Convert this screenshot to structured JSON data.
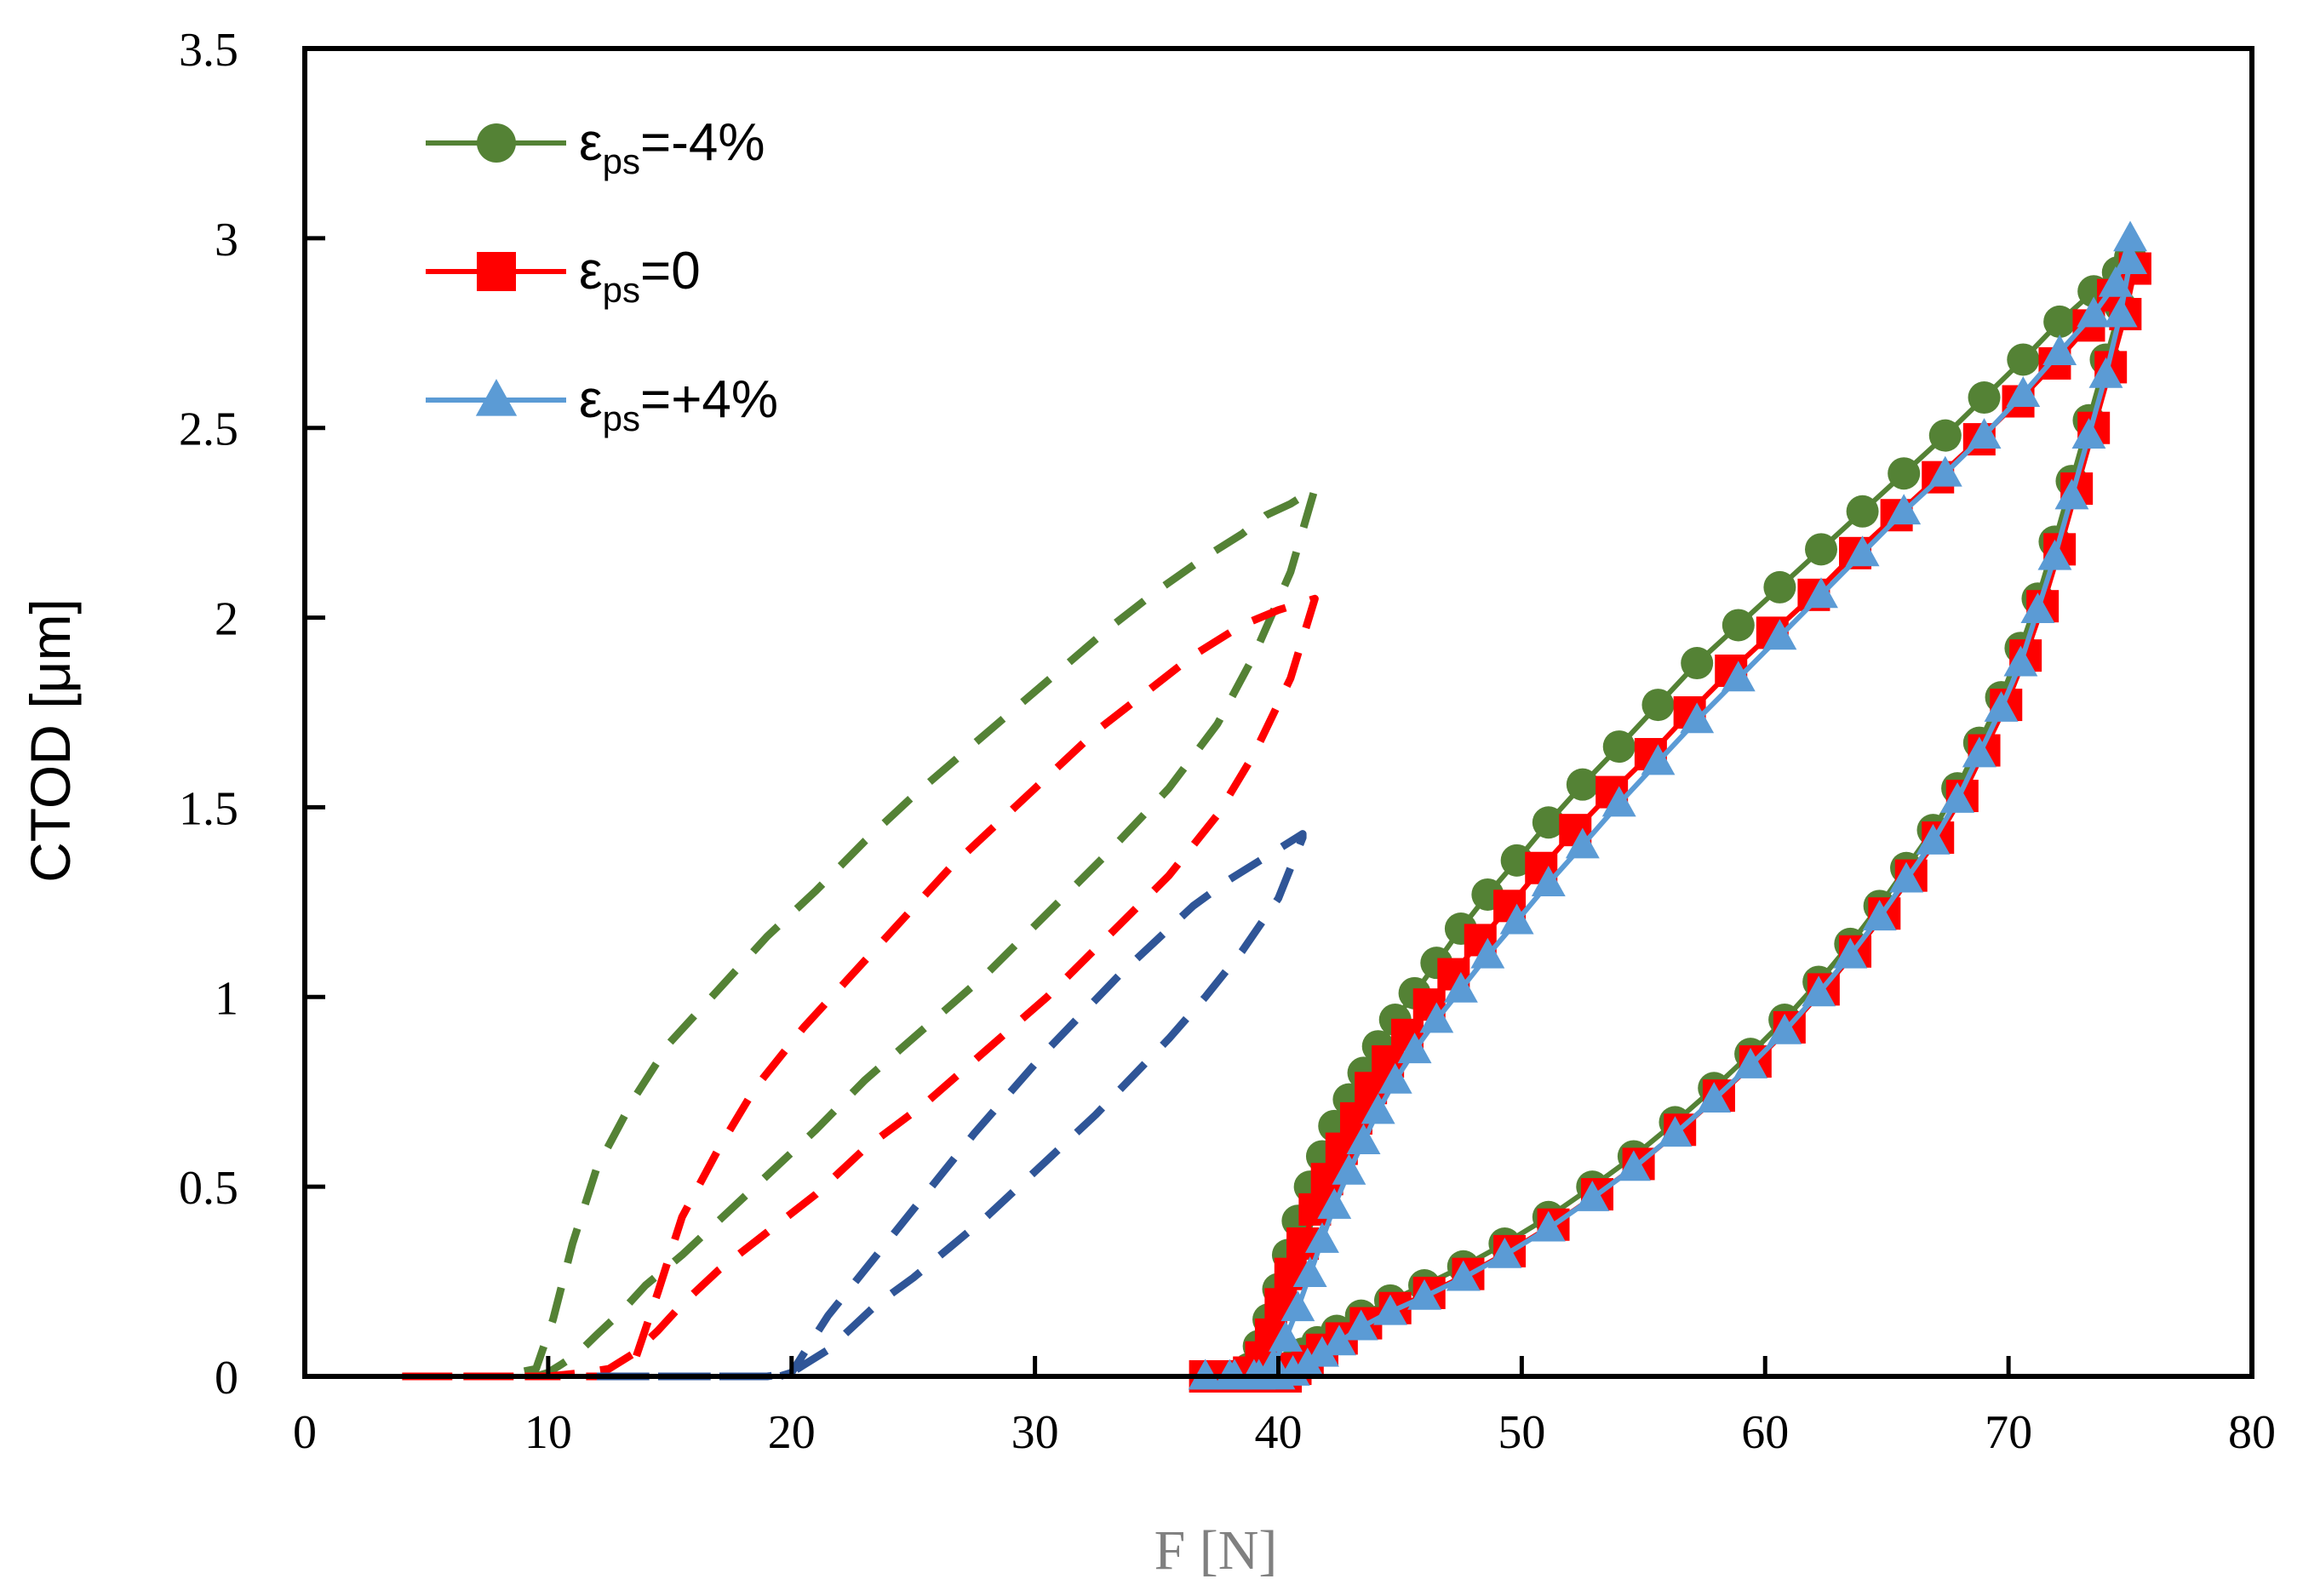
{
  "chart_data": {
    "type": "scatter",
    "title": "",
    "xlabel": "F [N]",
    "ylabel": "CTOD [μm]",
    "xlim": [
      0,
      80
    ],
    "ylim": [
      0,
      3.5
    ],
    "x_ticks": [
      "0",
      "10",
      "20",
      "30",
      "40",
      "50",
      "60",
      "70",
      "80"
    ],
    "y_ticks": [
      "0",
      "0.5",
      "1",
      "1.5",
      "2",
      "2.5",
      "3",
      "3.5"
    ],
    "grid": false,
    "legend_position": "top-left",
    "legend": [
      {
        "prefix": "ε",
        "subscript": "ps",
        "suffix": "=-4%",
        "color": "#548235",
        "marker": "circle"
      },
      {
        "prefix": "ε",
        "subscript": "ps",
        "suffix": "=0",
        "color": "#FF0000",
        "marker": "square"
      },
      {
        "prefix": "ε",
        "subscript": "ps",
        "suffix": "=+4%",
        "color": "#5B9BD5",
        "marker": "triangle"
      }
    ],
    "series": [
      {
        "name": "εps=-4%",
        "style": "marker-line",
        "color": "#548235",
        "marker": "circle",
        "x": [
          37.0,
          38.0,
          38.8,
          39.2,
          39.6,
          40.0,
          40.4,
          40.8,
          41.3,
          41.8,
          42.3,
          42.9,
          43.5,
          44.1,
          44.8,
          45.6,
          46.5,
          47.5,
          48.6,
          49.8,
          51.1,
          52.5,
          54.0,
          55.6,
          57.2,
          58.9,
          60.6,
          62.3,
          64.0,
          65.7,
          67.4,
          69.0,
          70.6,
          72.1,
          73.5,
          74.5,
          75.0,
          75.0,
          74.6,
          74.0,
          73.3,
          72.6,
          71.9,
          71.2,
          70.5,
          69.7,
          68.8,
          67.9,
          66.9,
          65.8,
          64.7,
          63.5,
          62.2,
          60.8,
          59.4,
          57.9,
          56.3,
          54.6,
          52.9,
          51.1,
          49.3,
          47.6,
          46.0,
          44.6,
          43.4,
          42.4,
          41.6,
          41.0,
          40.6,
          40.2,
          39.8,
          39.3,
          38.6,
          37.8,
          37.0
        ],
        "y": [
          0,
          0,
          0.02,
          0.08,
          0.15,
          0.23,
          0.32,
          0.41,
          0.5,
          0.58,
          0.66,
          0.73,
          0.8,
          0.87,
          0.94,
          1.01,
          1.09,
          1.18,
          1.27,
          1.36,
          1.46,
          1.56,
          1.66,
          1.77,
          1.88,
          1.98,
          2.08,
          2.18,
          2.28,
          2.38,
          2.48,
          2.58,
          2.68,
          2.78,
          2.86,
          2.91,
          2.95,
          2.93,
          2.82,
          2.68,
          2.52,
          2.36,
          2.2,
          2.05,
          1.92,
          1.79,
          1.67,
          1.55,
          1.44,
          1.34,
          1.24,
          1.14,
          1.04,
          0.94,
          0.85,
          0.76,
          0.67,
          0.58,
          0.5,
          0.42,
          0.35,
          0.29,
          0.24,
          0.2,
          0.16,
          0.12,
          0.09,
          0.06,
          0.03,
          0.01,
          0,
          0,
          0,
          0,
          0
        ]
      },
      {
        "name": "εps=0",
        "style": "marker-line",
        "color": "#FF0000",
        "marker": "square",
        "x": [
          37.0,
          38.0,
          38.8,
          39.3,
          39.7,
          40.1,
          40.5,
          41.0,
          41.5,
          42.0,
          42.6,
          43.2,
          43.8,
          44.5,
          45.3,
          46.2,
          47.2,
          48.3,
          49.5,
          50.8,
          52.2,
          53.7,
          55.3,
          56.9,
          58.6,
          60.3,
          62.0,
          63.7,
          65.4,
          67.1,
          68.8,
          70.4,
          71.9,
          73.3,
          74.3,
          75.2,
          75.2,
          74.8,
          74.2,
          73.5,
          72.8,
          72.1,
          71.4,
          70.7,
          69.9,
          69.0,
          68.1,
          67.1,
          66.0,
          64.9,
          63.7,
          62.4,
          61.0,
          59.6,
          58.1,
          56.5,
          54.8,
          53.1,
          51.3,
          49.5,
          47.8,
          46.2,
          44.8,
          43.6,
          42.6,
          41.8,
          41.2,
          40.7,
          40.3,
          39.8,
          39.2,
          38.5,
          37.8,
          37.0
        ],
        "y": [
          0,
          0,
          0.01,
          0.05,
          0.11,
          0.19,
          0.27,
          0.35,
          0.44,
          0.52,
          0.6,
          0.68,
          0.76,
          0.83,
          0.9,
          0.98,
          1.06,
          1.15,
          1.24,
          1.34,
          1.44,
          1.54,
          1.64,
          1.75,
          1.86,
          1.96,
          2.06,
          2.17,
          2.27,
          2.37,
          2.47,
          2.57,
          2.67,
          2.77,
          2.85,
          2.92,
          2.92,
          2.8,
          2.66,
          2.5,
          2.34,
          2.18,
          2.03,
          1.9,
          1.77,
          1.65,
          1.53,
          1.42,
          1.32,
          1.22,
          1.12,
          1.02,
          0.92,
          0.83,
          0.74,
          0.65,
          0.56,
          0.48,
          0.4,
          0.33,
          0.27,
          0.22,
          0.18,
          0.14,
          0.1,
          0.07,
          0.04,
          0.02,
          0,
          0,
          0,
          0,
          0,
          0
        ]
      },
      {
        "name": "εps=+4%",
        "style": "marker-line",
        "color": "#5B9BD5",
        "marker": "triangle",
        "x": [
          37.0,
          38.0,
          39.0,
          39.8,
          40.3,
          40.8,
          41.3,
          41.8,
          42.3,
          42.9,
          43.5,
          44.1,
          44.8,
          45.6,
          46.5,
          47.5,
          48.6,
          49.8,
          51.1,
          52.5,
          54.0,
          55.6,
          57.2,
          58.9,
          60.6,
          62.3,
          64.0,
          65.7,
          67.4,
          69.0,
          70.6,
          72.1,
          73.5,
          74.4,
          75.0,
          75.0,
          74.6,
          74.0,
          73.3,
          72.6,
          71.9,
          71.2,
          70.5,
          69.7,
          68.8,
          67.9,
          66.9,
          65.8,
          64.7,
          63.5,
          62.2,
          60.8,
          59.4,
          57.9,
          56.3,
          54.6,
          52.9,
          51.1,
          49.3,
          47.6,
          46.0,
          44.6,
          43.4,
          42.5,
          41.8,
          41.2,
          40.6,
          40.0,
          39.2,
          38.2,
          37.0
        ],
        "y": [
          0,
          0,
          0,
          0.03,
          0.1,
          0.18,
          0.27,
          0.36,
          0.45,
          0.54,
          0.62,
          0.7,
          0.78,
          0.86,
          0.94,
          1.02,
          1.11,
          1.2,
          1.3,
          1.4,
          1.51,
          1.62,
          1.73,
          1.84,
          1.95,
          2.06,
          2.17,
          2.28,
          2.38,
          2.48,
          2.59,
          2.7,
          2.8,
          2.88,
          3.0,
          2.94,
          2.8,
          2.64,
          2.48,
          2.32,
          2.16,
          2.02,
          1.88,
          1.76,
          1.64,
          1.52,
          1.41,
          1.31,
          1.21,
          1.11,
          1.01,
          0.91,
          0.82,
          0.73,
          0.64,
          0.55,
          0.47,
          0.39,
          0.32,
          0.26,
          0.21,
          0.17,
          0.13,
          0.09,
          0.06,
          0.03,
          0.01,
          0,
          0,
          0,
          0
        ]
      },
      {
        "name": "dashed green",
        "style": "dashed",
        "color": "#548235",
        "x": [
          4,
          6,
          8,
          9.5,
          10.2,
          11,
          12,
          13.5,
          15,
          17,
          19,
          21,
          23,
          25,
          27,
          29,
          31,
          33,
          35,
          37,
          38.5,
          39.5,
          40.5,
          41.5,
          41.5,
          40.5,
          39,
          37.5,
          35.5,
          33,
          30.5,
          28,
          25.5,
          23,
          21,
          19,
          17,
          15.5,
          14,
          13,
          12,
          11.2,
          10.5,
          10,
          9.5,
          8,
          6,
          4
        ],
        "y": [
          0,
          0,
          0,
          0.02,
          0.15,
          0.35,
          0.55,
          0.73,
          0.88,
          1.02,
          1.16,
          1.28,
          1.41,
          1.53,
          1.64,
          1.75,
          1.86,
          1.97,
          2.07,
          2.16,
          2.22,
          2.27,
          2.3,
          2.34,
          2.34,
          2.12,
          1.9,
          1.72,
          1.55,
          1.38,
          1.22,
          1.06,
          0.92,
          0.78,
          0.65,
          0.53,
          0.41,
          0.32,
          0.24,
          0.17,
          0.11,
          0.06,
          0.03,
          0.01,
          0,
          0,
          0,
          0
        ]
      },
      {
        "name": "dashed red",
        "style": "dashed",
        "color": "#FF0000",
        "x": [
          4,
          6,
          8,
          10,
          12,
          13,
          13.5,
          14.5,
          15.5,
          17,
          18.5,
          20.5,
          22.5,
          24.5,
          26.5,
          28.5,
          30.5,
          32.5,
          34.5,
          36.5,
          38.5,
          40,
          41.5,
          41.5,
          40.5,
          39,
          37.5,
          35.5,
          33,
          30.5,
          28,
          25.5,
          23,
          21,
          19,
          17,
          15.5,
          14.5,
          13.5,
          12.5,
          11.5,
          10,
          8,
          6,
          4
        ],
        "y": [
          0,
          0,
          0,
          0,
          0,
          0,
          0.03,
          0.22,
          0.42,
          0.6,
          0.76,
          0.92,
          1.06,
          1.2,
          1.34,
          1.46,
          1.58,
          1.7,
          1.8,
          1.9,
          1.98,
          2.02,
          2.05,
          2.05,
          1.84,
          1.64,
          1.48,
          1.32,
          1.16,
          1.0,
          0.86,
          0.72,
          0.6,
          0.48,
          0.38,
          0.28,
          0.19,
          0.12,
          0.06,
          0.02,
          0.01,
          0,
          0,
          0,
          0
        ]
      },
      {
        "name": "dashed blue",
        "style": "dashed",
        "color": "#2F5597",
        "x": [
          12,
          14,
          16,
          18,
          19.5,
          20,
          20.5,
          21.5,
          23,
          24.5,
          26,
          27.5,
          29,
          30.5,
          32,
          33.5,
          35,
          36.5,
          38,
          39.5,
          41,
          41,
          40,
          38.5,
          37,
          35.5,
          34,
          32.5,
          31,
          29.5,
          28,
          26.5,
          25,
          23.5,
          22.5,
          21.5,
          20.5,
          20,
          19,
          17,
          15,
          12
        ],
        "y": [
          0,
          0,
          0,
          0,
          0,
          0.01,
          0.06,
          0.16,
          0.28,
          0.4,
          0.52,
          0.64,
          0.75,
          0.86,
          0.96,
          1.06,
          1.15,
          1.24,
          1.31,
          1.37,
          1.43,
          1.42,
          1.26,
          1.12,
          1.0,
          0.89,
          0.79,
          0.69,
          0.6,
          0.51,
          0.42,
          0.34,
          0.26,
          0.19,
          0.13,
          0.07,
          0.03,
          0.01,
          0,
          0,
          0,
          0
        ]
      }
    ]
  }
}
